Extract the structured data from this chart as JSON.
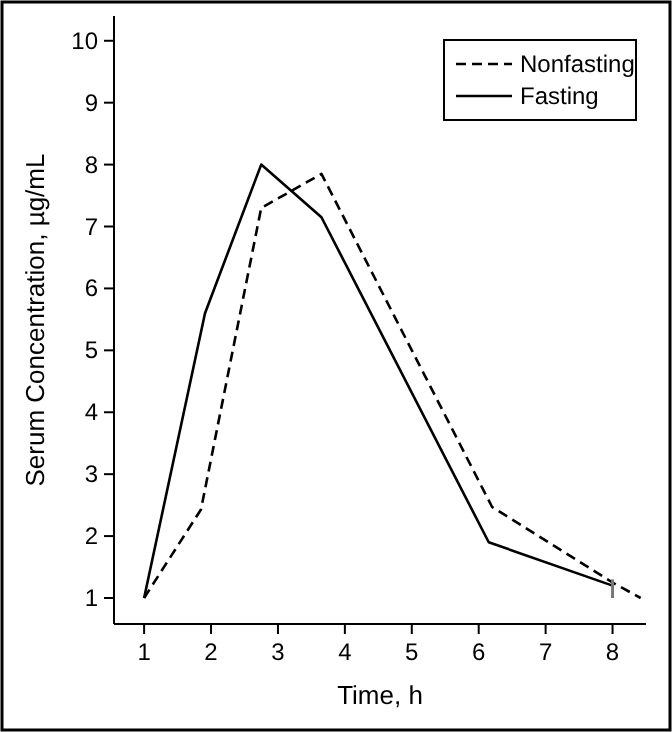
{
  "chart_data": {
    "type": "line",
    "xlabel": "Time, h",
    "ylabel": "Serum Concentration, µg/mL",
    "xlim": [
      0.55,
      8.5
    ],
    "ylim": [
      0.58,
      10.4
    ],
    "xticks": [
      1,
      2,
      3,
      4,
      5,
      6,
      7,
      8
    ],
    "yticks": [
      1,
      2,
      3,
      4,
      5,
      6,
      7,
      8,
      9,
      10
    ],
    "legend": "top right",
    "grid": false,
    "marker": "none",
    "series": [
      {
        "name": "Nonfasting",
        "color": "#000000",
        "line_style": "dashed",
        "x": [
          1,
          1.85,
          2.75,
          3.65,
          6.2,
          8,
          8.42
        ],
        "values": [
          1,
          2.43,
          7.3,
          7.85,
          2.47,
          1.25,
          1.0
        ]
      },
      {
        "name": "Fasting",
        "color": "#000000",
        "line_style": "solid",
        "x": [
          1,
          1.91,
          2.75,
          3.65,
          6.15,
          8
        ],
        "values": [
          1,
          5.6,
          8,
          7.15,
          1.9,
          1.2
        ],
        "errors": [
          null,
          null,
          null,
          null,
          null,
          [
            1.0,
            1.3
          ]
        ]
      }
    ]
  }
}
